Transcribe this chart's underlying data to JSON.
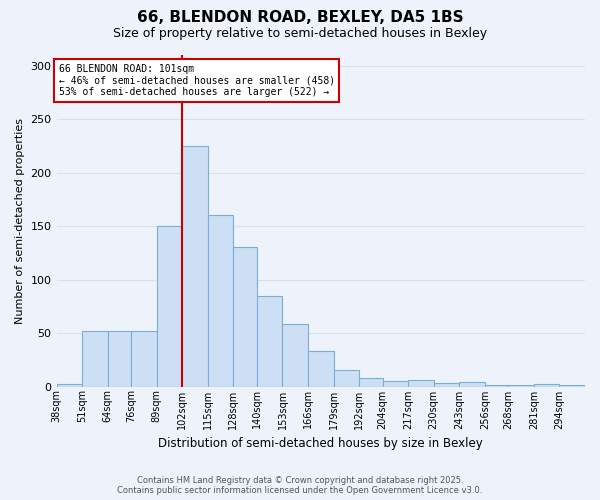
{
  "title1": "66, BLENDON ROAD, BEXLEY, DA5 1BS",
  "title2": "Size of property relative to semi-detached houses in Bexley",
  "xlabel": "Distribution of semi-detached houses by size in Bexley",
  "ylabel": "Number of semi-detached properties",
  "bin_labels": [
    "38sqm",
    "51sqm",
    "64sqm",
    "76sqm",
    "89sqm",
    "102sqm",
    "115sqm",
    "128sqm",
    "140sqm",
    "153sqm",
    "166sqm",
    "179sqm",
    "192sqm",
    "204sqm",
    "217sqm",
    "230sqm",
    "243sqm",
    "256sqm",
    "268sqm",
    "281sqm",
    "294sqm"
  ],
  "bin_edges": [
    38,
    51,
    64,
    76,
    89,
    102,
    115,
    128,
    140,
    153,
    166,
    179,
    192,
    204,
    217,
    230,
    243,
    256,
    268,
    281,
    294
  ],
  "values": [
    2,
    52,
    52,
    52,
    150,
    225,
    160,
    130,
    85,
    58,
    33,
    15,
    8,
    5,
    6,
    3,
    4,
    1,
    1,
    2,
    1
  ],
  "bar_color": "#ccdff5",
  "bar_edge_color": "#7aafd4",
  "vline_x": 102,
  "vline_color": "#cc0000",
  "annotation_title": "66 BLENDON ROAD: 101sqm",
  "annotation_line1": "← 46% of semi-detached houses are smaller (458)",
  "annotation_line2": "53% of semi-detached houses are larger (522) →",
  "annotation_box_color": "#ffffff",
  "annotation_box_edge": "#cc0000",
  "ylim": [
    0,
    310
  ],
  "yticks": [
    0,
    50,
    100,
    150,
    200,
    250,
    300
  ],
  "footer1": "Contains HM Land Registry data © Crown copyright and database right 2025.",
  "footer2": "Contains public sector information licensed under the Open Government Licence v3.0.",
  "bg_color": "#eef2fa",
  "grid_color": "#d8e0ee",
  "title1_fontsize": 11,
  "title2_fontsize": 9
}
